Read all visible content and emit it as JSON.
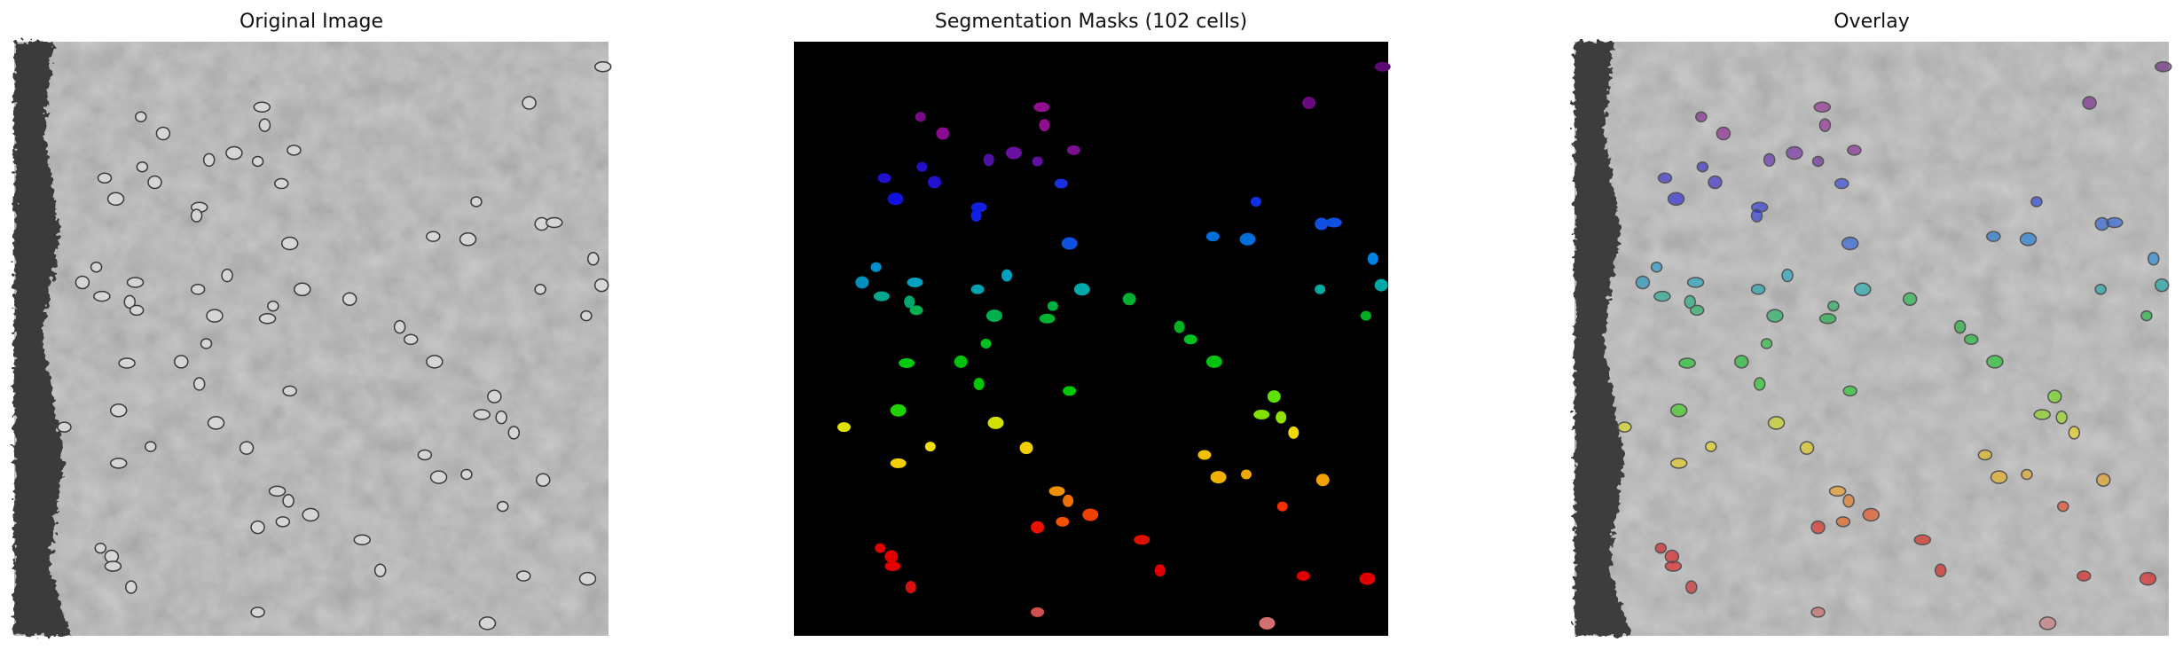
{
  "panels": [
    {
      "title": "Original Image"
    },
    {
      "title": "Segmentation Masks (102 cells)"
    },
    {
      "title": "Overlay"
    }
  ]
}
